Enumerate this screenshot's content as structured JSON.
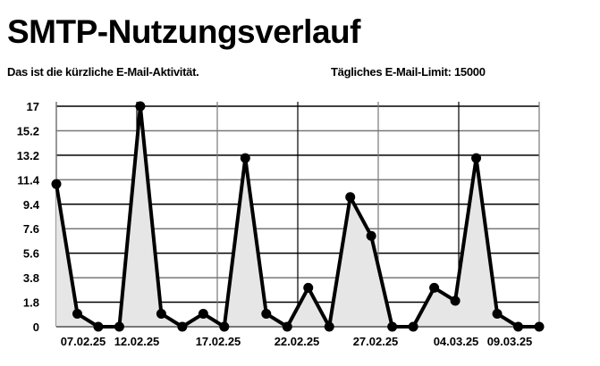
{
  "header": {
    "title": "SMTP-Nutzungsverlauf",
    "subtitle": "Das ist die kürzliche E-Mail-Aktivität.",
    "limit_text": "Tägliches E-Mail-Limit: 15000"
  },
  "chart_data": {
    "type": "area",
    "title": "",
    "xlabel": "",
    "ylabel": "",
    "ylim": [
      0,
      17
    ],
    "yticks": [
      "0",
      "1.8",
      "3.8",
      "5.6",
      "7.6",
      "9.4",
      "11.4",
      "13.2",
      "15.2",
      "17"
    ],
    "xtick_labels": [
      "07.02.25",
      "12.02.25",
      "17.02.25",
      "22.02.25",
      "27.02.25",
      "04.03.25",
      "09.03.25"
    ],
    "values": [
      11,
      1,
      0,
      0,
      17,
      1,
      0,
      1,
      0,
      13,
      1,
      0,
      3,
      0,
      10,
      7,
      0,
      0,
      3,
      2,
      13,
      1,
      0,
      0
    ],
    "grid": true,
    "line_color": "#000000",
    "fill_color": "#e6e6e6"
  }
}
